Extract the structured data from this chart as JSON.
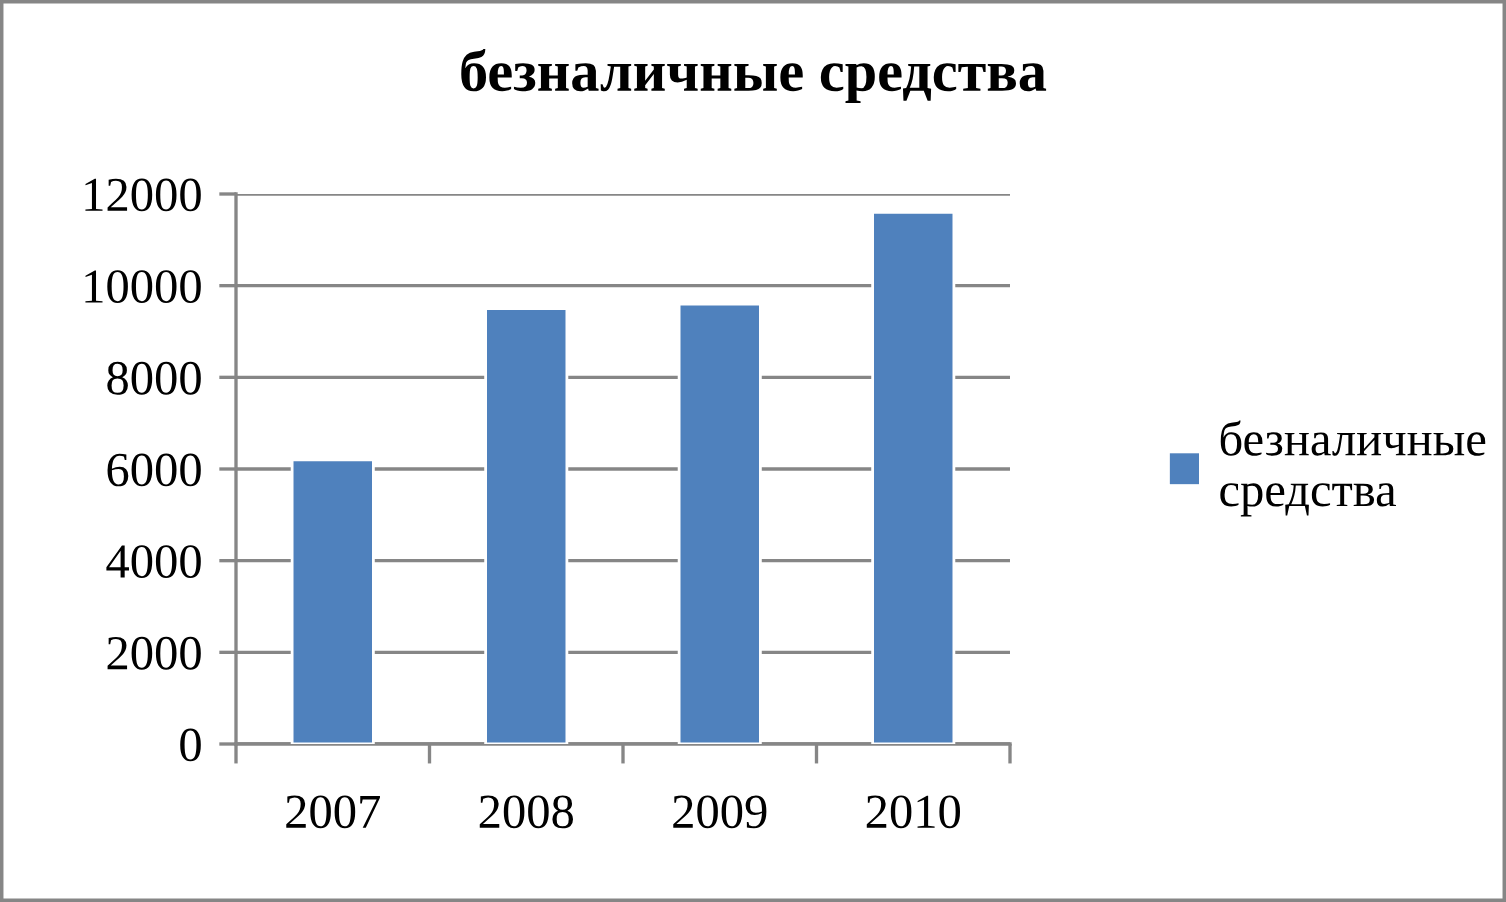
{
  "chart_data": {
    "type": "bar",
    "title": "безналичные средства",
    "categories": [
      "2007",
      "2008",
      "2009",
      "2010"
    ],
    "series": [
      {
        "name": "безналичные средства",
        "color": "#4f81bd",
        "values": [
          6200,
          9500,
          9600,
          11600
        ]
      }
    ],
    "ylim": [
      0,
      12000
    ],
    "yticks": [
      0,
      2000,
      4000,
      6000,
      8000,
      10000,
      12000
    ],
    "grid": "y",
    "legend": "right"
  }
}
